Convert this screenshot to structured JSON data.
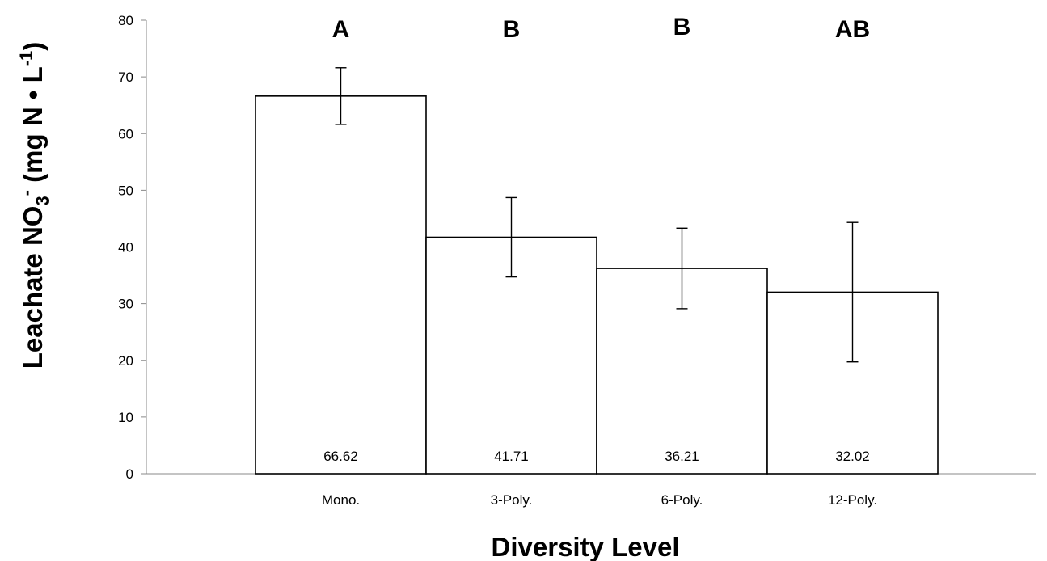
{
  "chart_data": {
    "type": "bar",
    "categories": [
      "Mono.",
      "3-Poly.",
      "6-Poly.",
      "12-Poly."
    ],
    "values": [
      66.62,
      41.71,
      36.21,
      32.02
    ],
    "value_labels": [
      "66.62",
      "41.71",
      "36.21",
      "32.02"
    ],
    "error": [
      5.0,
      7.0,
      7.1,
      12.3
    ],
    "significance": [
      "A",
      "B",
      "B",
      "AB"
    ],
    "ylim": [
      0,
      80
    ],
    "yticks": [
      0,
      10,
      20,
      30,
      40,
      50,
      60,
      70,
      80
    ],
    "xlabel": "Diversity Level",
    "ylabel": {
      "part1": "Leachate NO",
      "sub": "3",
      "sup": "-",
      "part2": " (mg N • L",
      "sup2": "-1",
      "part3": ")"
    },
    "grid": false,
    "legend": "none",
    "colors": {
      "bar_fill": "#ffffff",
      "bar_stroke": "#000000",
      "axis": "#888888"
    }
  }
}
